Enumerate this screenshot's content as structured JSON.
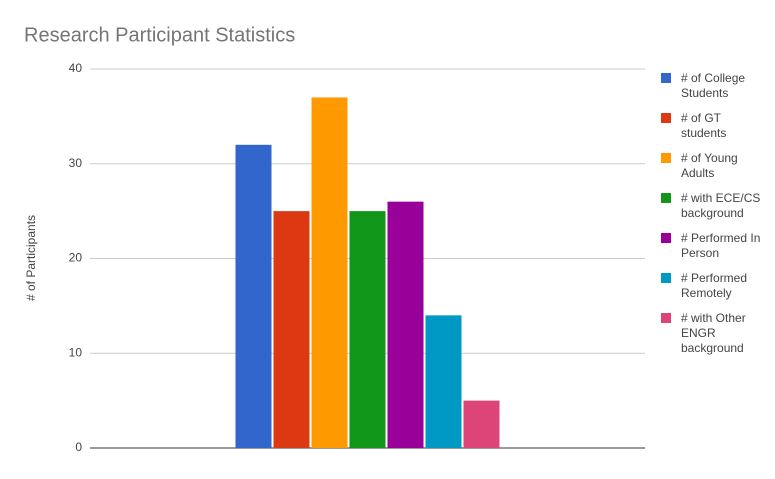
{
  "chart_data": {
    "type": "bar",
    "title": "Research Participant Statistics",
    "y_label": "# of Participants",
    "categories": [
      null
    ],
    "series": [
      {
        "name": "# of College Students",
        "color": "#3366cc",
        "values": [
          32
        ]
      },
      {
        "name": "# of GT students",
        "color": "#dc3912",
        "values": [
          25
        ]
      },
      {
        "name": "# of Young Adults",
        "color": "#ff9900",
        "values": [
          37
        ]
      },
      {
        "name": "# with ECE/CS background",
        "color": "#109618",
        "values": [
          25
        ]
      },
      {
        "name": "# Performed In Person",
        "color": "#990099",
        "values": [
          26
        ]
      },
      {
        "name": "# Performed Remotely",
        "color": "#0099c6",
        "values": [
          14
        ]
      },
      {
        "name": "# with Other ENGR background",
        "color": "#dd4477",
        "values": [
          5
        ]
      }
    ],
    "ylim": [
      0,
      40
    ],
    "yticks": [
      0,
      10,
      20,
      30,
      40
    ],
    "grid": true,
    "legend": "right"
  }
}
